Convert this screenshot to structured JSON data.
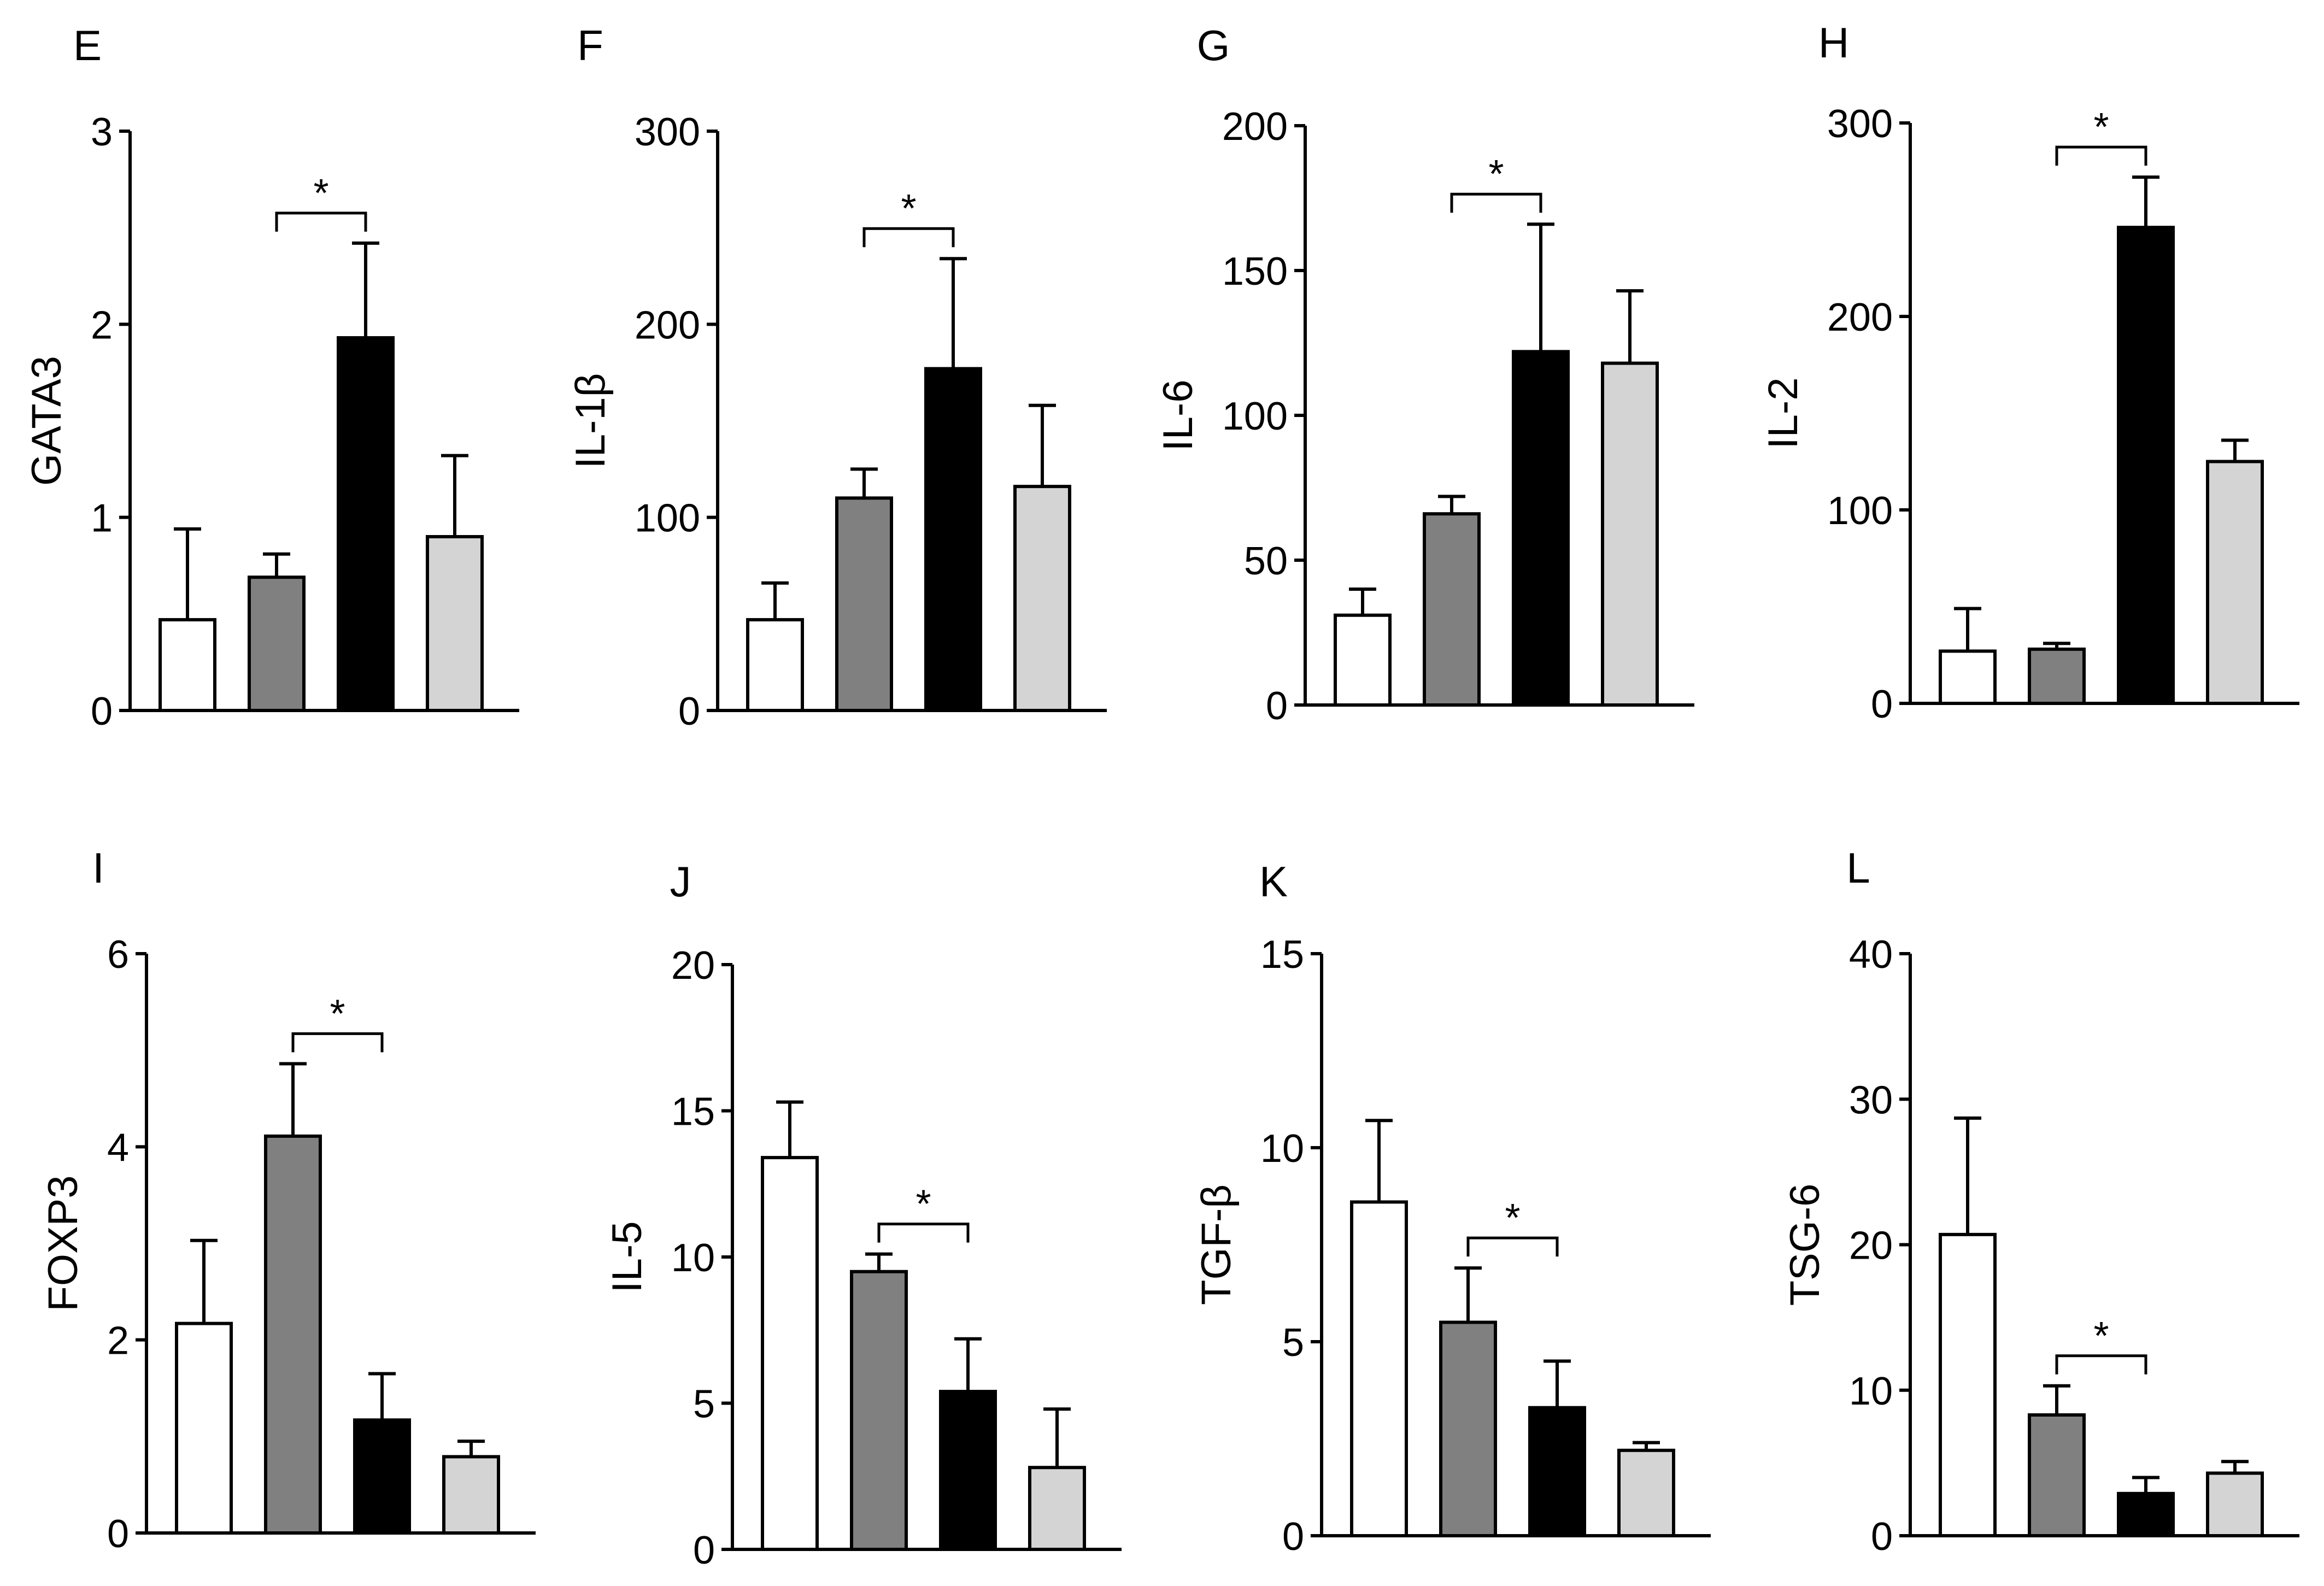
{
  "chart_data": [
    {
      "type": "bar",
      "panel": "E",
      "ylabel": "GATA3",
      "ylim": [
        0,
        3
      ],
      "yticks": [
        0,
        1,
        2,
        3
      ],
      "ytick_labels": [
        "0",
        "1",
        "2",
        "3"
      ],
      "values": [
        0.47,
        0.69,
        1.93,
        0.9
      ],
      "errors": [
        0.47,
        0.12,
        0.49,
        0.42
      ],
      "significance": {
        "bars": [
          1,
          2
        ],
        "label": "*"
      }
    },
    {
      "type": "bar",
      "panel": "F",
      "ylabel": "IL-1β",
      "ylim": [
        0,
        300
      ],
      "yticks": [
        0,
        100,
        200,
        300
      ],
      "ytick_labels": [
        "0",
        "100",
        "200",
        "300"
      ],
      "values": [
        47,
        110,
        177,
        116
      ],
      "errors": [
        19,
        15,
        57,
        42
      ],
      "significance": {
        "bars": [
          1,
          2
        ],
        "label": "*"
      }
    },
    {
      "type": "bar",
      "panel": "G",
      "ylabel": "IL-6",
      "ylim": [
        0,
        200
      ],
      "yticks": [
        0,
        50,
        100,
        150,
        200
      ],
      "ytick_labels": [
        "0",
        "50",
        "100",
        "150",
        "200"
      ],
      "values": [
        31,
        66,
        122,
        118
      ],
      "errors": [
        9,
        6,
        44,
        25
      ],
      "significance": {
        "bars": [
          1,
          2
        ],
        "label": "*"
      }
    },
    {
      "type": "bar",
      "panel": "H",
      "ylabel": "IL-2",
      "ylim": [
        0,
        300
      ],
      "yticks": [
        0,
        100,
        200,
        300
      ],
      "ytick_labels": [
        "0",
        "100",
        "200",
        "300"
      ],
      "values": [
        27,
        28,
        246,
        125
      ],
      "errors": [
        22,
        3,
        26,
        11
      ],
      "significance": {
        "bars": [
          1,
          2
        ],
        "label": "*"
      }
    },
    {
      "type": "bar",
      "panel": "I",
      "ylabel": "FOXP3",
      "ylim": [
        0,
        6
      ],
      "yticks": [
        0,
        2,
        4,
        6
      ],
      "ytick_labels": [
        "0",
        "2",
        "4",
        "6"
      ],
      "values": [
        2.17,
        4.11,
        1.17,
        0.79
      ],
      "errors": [
        0.86,
        0.75,
        0.48,
        0.16
      ],
      "significance": {
        "bars": [
          1,
          2
        ],
        "label": "*"
      }
    },
    {
      "type": "bar",
      "panel": "J",
      "ylabel": "IL-5",
      "ylim": [
        0,
        20
      ],
      "yticks": [
        0,
        5,
        10,
        15,
        20
      ],
      "ytick_labels": [
        "0",
        "5",
        "10",
        "15",
        "20"
      ],
      "values": [
        13.4,
        9.5,
        5.4,
        2.8
      ],
      "errors": [
        1.9,
        0.6,
        1.8,
        2.0
      ],
      "significance": {
        "bars": [
          1,
          2
        ],
        "label": "*"
      }
    },
    {
      "type": "bar",
      "panel": "K",
      "ylabel": "TGF-β",
      "ylim": [
        0,
        15
      ],
      "yticks": [
        0,
        5,
        10,
        15
      ],
      "ytick_labels": [
        "0",
        "5",
        "10",
        "15"
      ],
      "values": [
        8.6,
        5.5,
        3.3,
        2.2
      ],
      "errors": [
        2.1,
        1.4,
        1.2,
        0.2
      ],
      "significance": {
        "bars": [
          1,
          2
        ],
        "label": "*"
      }
    },
    {
      "type": "bar",
      "panel": "L",
      "ylabel": "TSG-6",
      "ylim": [
        0,
        40
      ],
      "yticks": [
        0,
        10,
        20,
        30,
        40
      ],
      "ytick_labels": [
        "0",
        "10",
        "20",
        "30",
        "40"
      ],
      "values": [
        20.7,
        8.3,
        2.9,
        4.3
      ],
      "errors": [
        8.0,
        2.0,
        1.1,
        0.8
      ],
      "significance": {
        "bars": [
          1,
          2
        ],
        "label": "*"
      }
    }
  ],
  "bar_fill_colors": [
    "#ffffff",
    "#808080",
    "#000000",
    "#d4d4d4"
  ],
  "axis_color": "#000000"
}
